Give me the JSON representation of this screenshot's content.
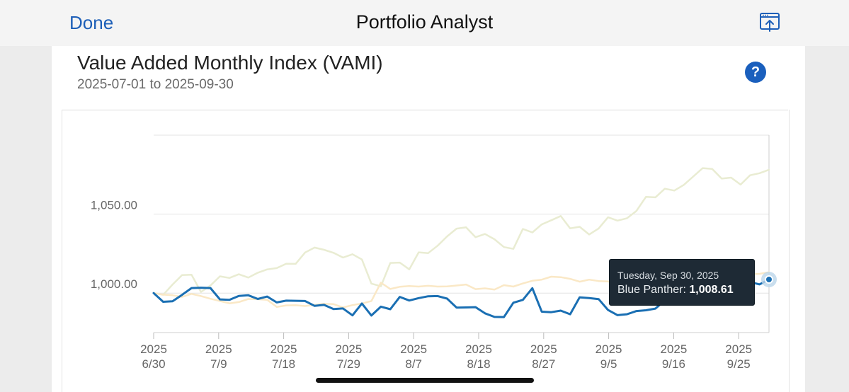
{
  "header": {
    "done_label": "Done",
    "title": "Portfolio Analyst",
    "share_icon": "share-screen-icon"
  },
  "card": {
    "title": "Value Added Monthly Index (VAMI)",
    "date_range": "2025-07-01 to 2025-09-30",
    "help_label": "?"
  },
  "tooltip": {
    "date": "Tuesday, Sep 30, 2025",
    "series": "Blue Panther",
    "value": "1,008.61"
  },
  "colors": {
    "accent": "#1d5fb8",
    "series_main": "#1a6fb3",
    "series_benchmark_1": "#ecefd9",
    "series_benchmark_2": "#fbecd0"
  },
  "chart_data": {
    "type": "line",
    "y_ticks": [
      "1,000.00",
      "1,050.00"
    ],
    "y_tick_values": [
      1000,
      1050
    ],
    "x_ticks": [
      {
        "year": "2025",
        "date": "6/30"
      },
      {
        "year": "2025",
        "date": "7/9"
      },
      {
        "year": "2025",
        "date": "7/18"
      },
      {
        "year": "2025",
        "date": "7/29"
      },
      {
        "year": "2025",
        "date": "8/7"
      },
      {
        "year": "2025",
        "date": "8/18"
      },
      {
        "year": "2025",
        "date": "8/27"
      },
      {
        "year": "2025",
        "date": "9/5"
      },
      {
        "year": "2025",
        "date": "9/16"
      },
      {
        "year": "2025",
        "date": "9/25"
      }
    ],
    "ylim": [
      975,
      1100
    ],
    "grid": true,
    "series": [
      {
        "name": "Blue Panther",
        "color": "#1a6fb3",
        "values": [
          1000.0,
          994.5,
          994.8,
          998.9,
          1003.2,
          1003.4,
          1003.2,
          996.0,
          995.7,
          998.2,
          998.6,
          996.3,
          997.8,
          994.1,
          995.2,
          995.1,
          995.0,
          991.9,
          992.5,
          989.9,
          990.3,
          985.9,
          993.4,
          985.8,
          991.4,
          989.8,
          997.6,
          995.3,
          996.8,
          998.0,
          998.1,
          996.5,
          990.8,
          990.9,
          991.1,
          987.2,
          984.9,
          984.8,
          993.9,
          995.7,
          1003.1,
          988.2,
          987.9,
          988.9,
          986.6,
          997.3,
          996.8,
          996.2,
          989.3,
          986.0,
          986.6,
          988.6,
          989.1,
          990.2,
          995.3,
          997.6,
          998.0,
          1000.9,
          1003.4,
          1002.5,
          992.7,
          996.6,
          1003.4,
          1007.0,
          1005.5,
          1008.6
        ]
      },
      {
        "name": "",
        "color": "#e9ecd2",
        "values": [
          1000.0,
          998.9,
          1005.4,
          1011.4,
          1011.6,
          1000.7,
          1004.8,
          1010.6,
          1009.6,
          1011.9,
          1009.8,
          1012.9,
          1015.0,
          1015.8,
          1018.6,
          1018.5,
          1025.7,
          1028.8,
          1027.4,
          1025.5,
          1022.5,
          1024.6,
          1021.3,
          1006.0,
          1004.3,
          1019.1,
          1019.3,
          1015.0,
          1025.8,
          1025.3,
          1030.0,
          1035.9,
          1040.8,
          1041.6,
          1035.4,
          1037.4,
          1034.1,
          1029.1,
          1028.0,
          1040.6,
          1038.4,
          1043.5,
          1046.1,
          1048.8,
          1041.0,
          1042.0,
          1037.1,
          1040.9,
          1048.0,
          1045.9,
          1047.4,
          1052.0,
          1060.9,
          1060.6,
          1066.1,
          1064.9,
          1068.5,
          1073.8,
          1079.1,
          1078.6,
          1072.5,
          1073.1,
          1068.7,
          1074.6,
          1075.9,
          1078.1
        ]
      },
      {
        "name": "",
        "color": "#fae8c6",
        "values": [
          1000.0,
          999.0,
          998.6,
          997.6,
          999.5,
          998.1,
          996.4,
          995.0,
          993.5,
          994.3,
          996.3,
          996.1,
          995.7,
          991.2,
          992.2,
          992.3,
          991.8,
          992.5,
          993.3,
          993.0,
          990.9,
          992.4,
          993.4,
          995.0,
          1006.6,
          1002.6,
          1004.0,
          1004.5,
          1004.1,
          1004.6,
          1004.1,
          1004.2,
          1004.8,
          1005.4,
          1002.5,
          1003.0,
          1002.2,
          1005.0,
          1004.1,
          1006.1,
          1007.8,
          1008.5,
          1010.4,
          1010.1,
          1009.0,
          1007.2,
          1008.5,
          1007.6,
          1007.4,
          1004.8,
          1007.1,
          1007.3,
          1006.4,
          1012.4,
          1016.5,
          1016.5,
          1017.8,
          1016.8,
          1016.8,
          1014.3,
          1011.3,
          1012.4,
          1011.1,
          1012.0,
          1012.2,
          1013.2
        ]
      }
    ]
  }
}
